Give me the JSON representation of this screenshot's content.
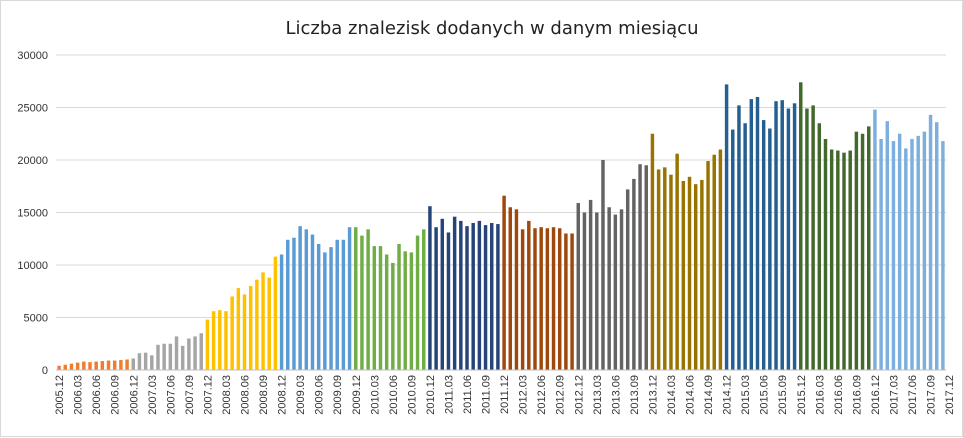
{
  "chart_data": {
    "type": "bar",
    "title": "Liczba znalezisk dodanych w danym miesiącu",
    "xlabel": "",
    "ylabel": "",
    "ylim": [
      0,
      30000
    ],
    "yticks": [
      "0",
      "5000",
      "10000",
      "15000",
      "20000",
      "25000",
      "30000"
    ],
    "grid": true,
    "legend": "none",
    "x_tick_labels": [
      "2005.12",
      "2006.03",
      "2006.06",
      "2006.09",
      "2006.12",
      "2007.03",
      "2007.06",
      "2007.09",
      "2007.12",
      "2008.03",
      "2008.06",
      "2008.09",
      "2008.12",
      "2009.03",
      "2009.06",
      "2009.09",
      "2009.12",
      "2010.03",
      "2010.06",
      "2010.09",
      "2010.12",
      "2011.03",
      "2011.06",
      "2011.09",
      "2011.12",
      "2012.03",
      "2012.06",
      "2012.09",
      "2012.12",
      "2013.03",
      "2013.06",
      "2013.09",
      "2013.12",
      "2014.03",
      "2014.06",
      "2014.09",
      "2014.12",
      "2015.03",
      "2015.06",
      "2015.09",
      "2015.12",
      "2016.03",
      "2016.06",
      "2016.09",
      "2016.12",
      "2017.03",
      "2017.06",
      "2017.09",
      "2017.12"
    ],
    "series": [
      {
        "color": "#ed7d31",
        "start": "2005.12",
        "values": [
          400,
          500,
          600,
          700,
          800,
          750,
          800,
          850,
          900,
          900,
          950,
          1000
        ]
      },
      {
        "color": "#a5a5a5",
        "start": "2006.12",
        "values": [
          1100,
          1600,
          1650,
          1400,
          2400,
          2500,
          2500,
          3200,
          2300,
          3000,
          3200,
          3500
        ]
      },
      {
        "color": "#ffc000",
        "start": "2007.12",
        "values": [
          4800,
          5600,
          5700,
          5600,
          7000,
          7800,
          7200,
          8000,
          8600,
          9300,
          8800,
          10800
        ]
      },
      {
        "color": "#5b9bd5",
        "start": "2008.12",
        "values": [
          11000,
          12400,
          12600,
          13700,
          13400,
          12900,
          12000,
          11200,
          11700,
          12400,
          12400,
          13600
        ]
      },
      {
        "color": "#70ad47",
        "start": "2009.12",
        "values": [
          13600,
          12800,
          13400,
          11800,
          11800,
          11000,
          10200,
          12000,
          11300,
          11200,
          12800,
          13400
        ]
      },
      {
        "color": "#264478",
        "start": "2010.12",
        "values": [
          15600,
          13600,
          14400,
          13100,
          14600,
          14200,
          13700,
          14000,
          14200,
          13800,
          14000,
          13900
        ]
      },
      {
        "color": "#9e480e",
        "start": "2011.12",
        "values": [
          16600,
          15500,
          15300,
          13400,
          14200,
          13500,
          13600,
          13500,
          13600,
          13500,
          13000,
          13000
        ]
      },
      {
        "color": "#636363",
        "start": "2012.12",
        "values": [
          15900,
          15000,
          16200,
          15000,
          20000,
          15500,
          14800,
          15300,
          17200,
          18200,
          19600,
          19500
        ]
      },
      {
        "color": "#997300",
        "start": "2013.12",
        "values": [
          22500,
          19100,
          19300,
          18600,
          20600,
          18000,
          18400,
          17700,
          18100,
          19900,
          20500,
          21000
        ]
      },
      {
        "color": "#255e91",
        "start": "2014.12",
        "values": [
          27200,
          22900,
          25200,
          23500,
          25800,
          26000,
          23800,
          23000,
          25600,
          25700,
          24900,
          25400
        ]
      },
      {
        "color": "#43682b",
        "start": "2015.12",
        "values": [
          27400,
          24900,
          25200,
          23500,
          22000,
          21000,
          20900,
          20700,
          20900,
          22700,
          22500,
          23200
        ]
      },
      {
        "color": "#7cafdd",
        "start": "2016.12",
        "values": [
          24800,
          22000,
          23700,
          21800,
          22500,
          21100,
          22000,
          22300,
          22700,
          24300,
          23600,
          21800
        ]
      }
    ]
  }
}
